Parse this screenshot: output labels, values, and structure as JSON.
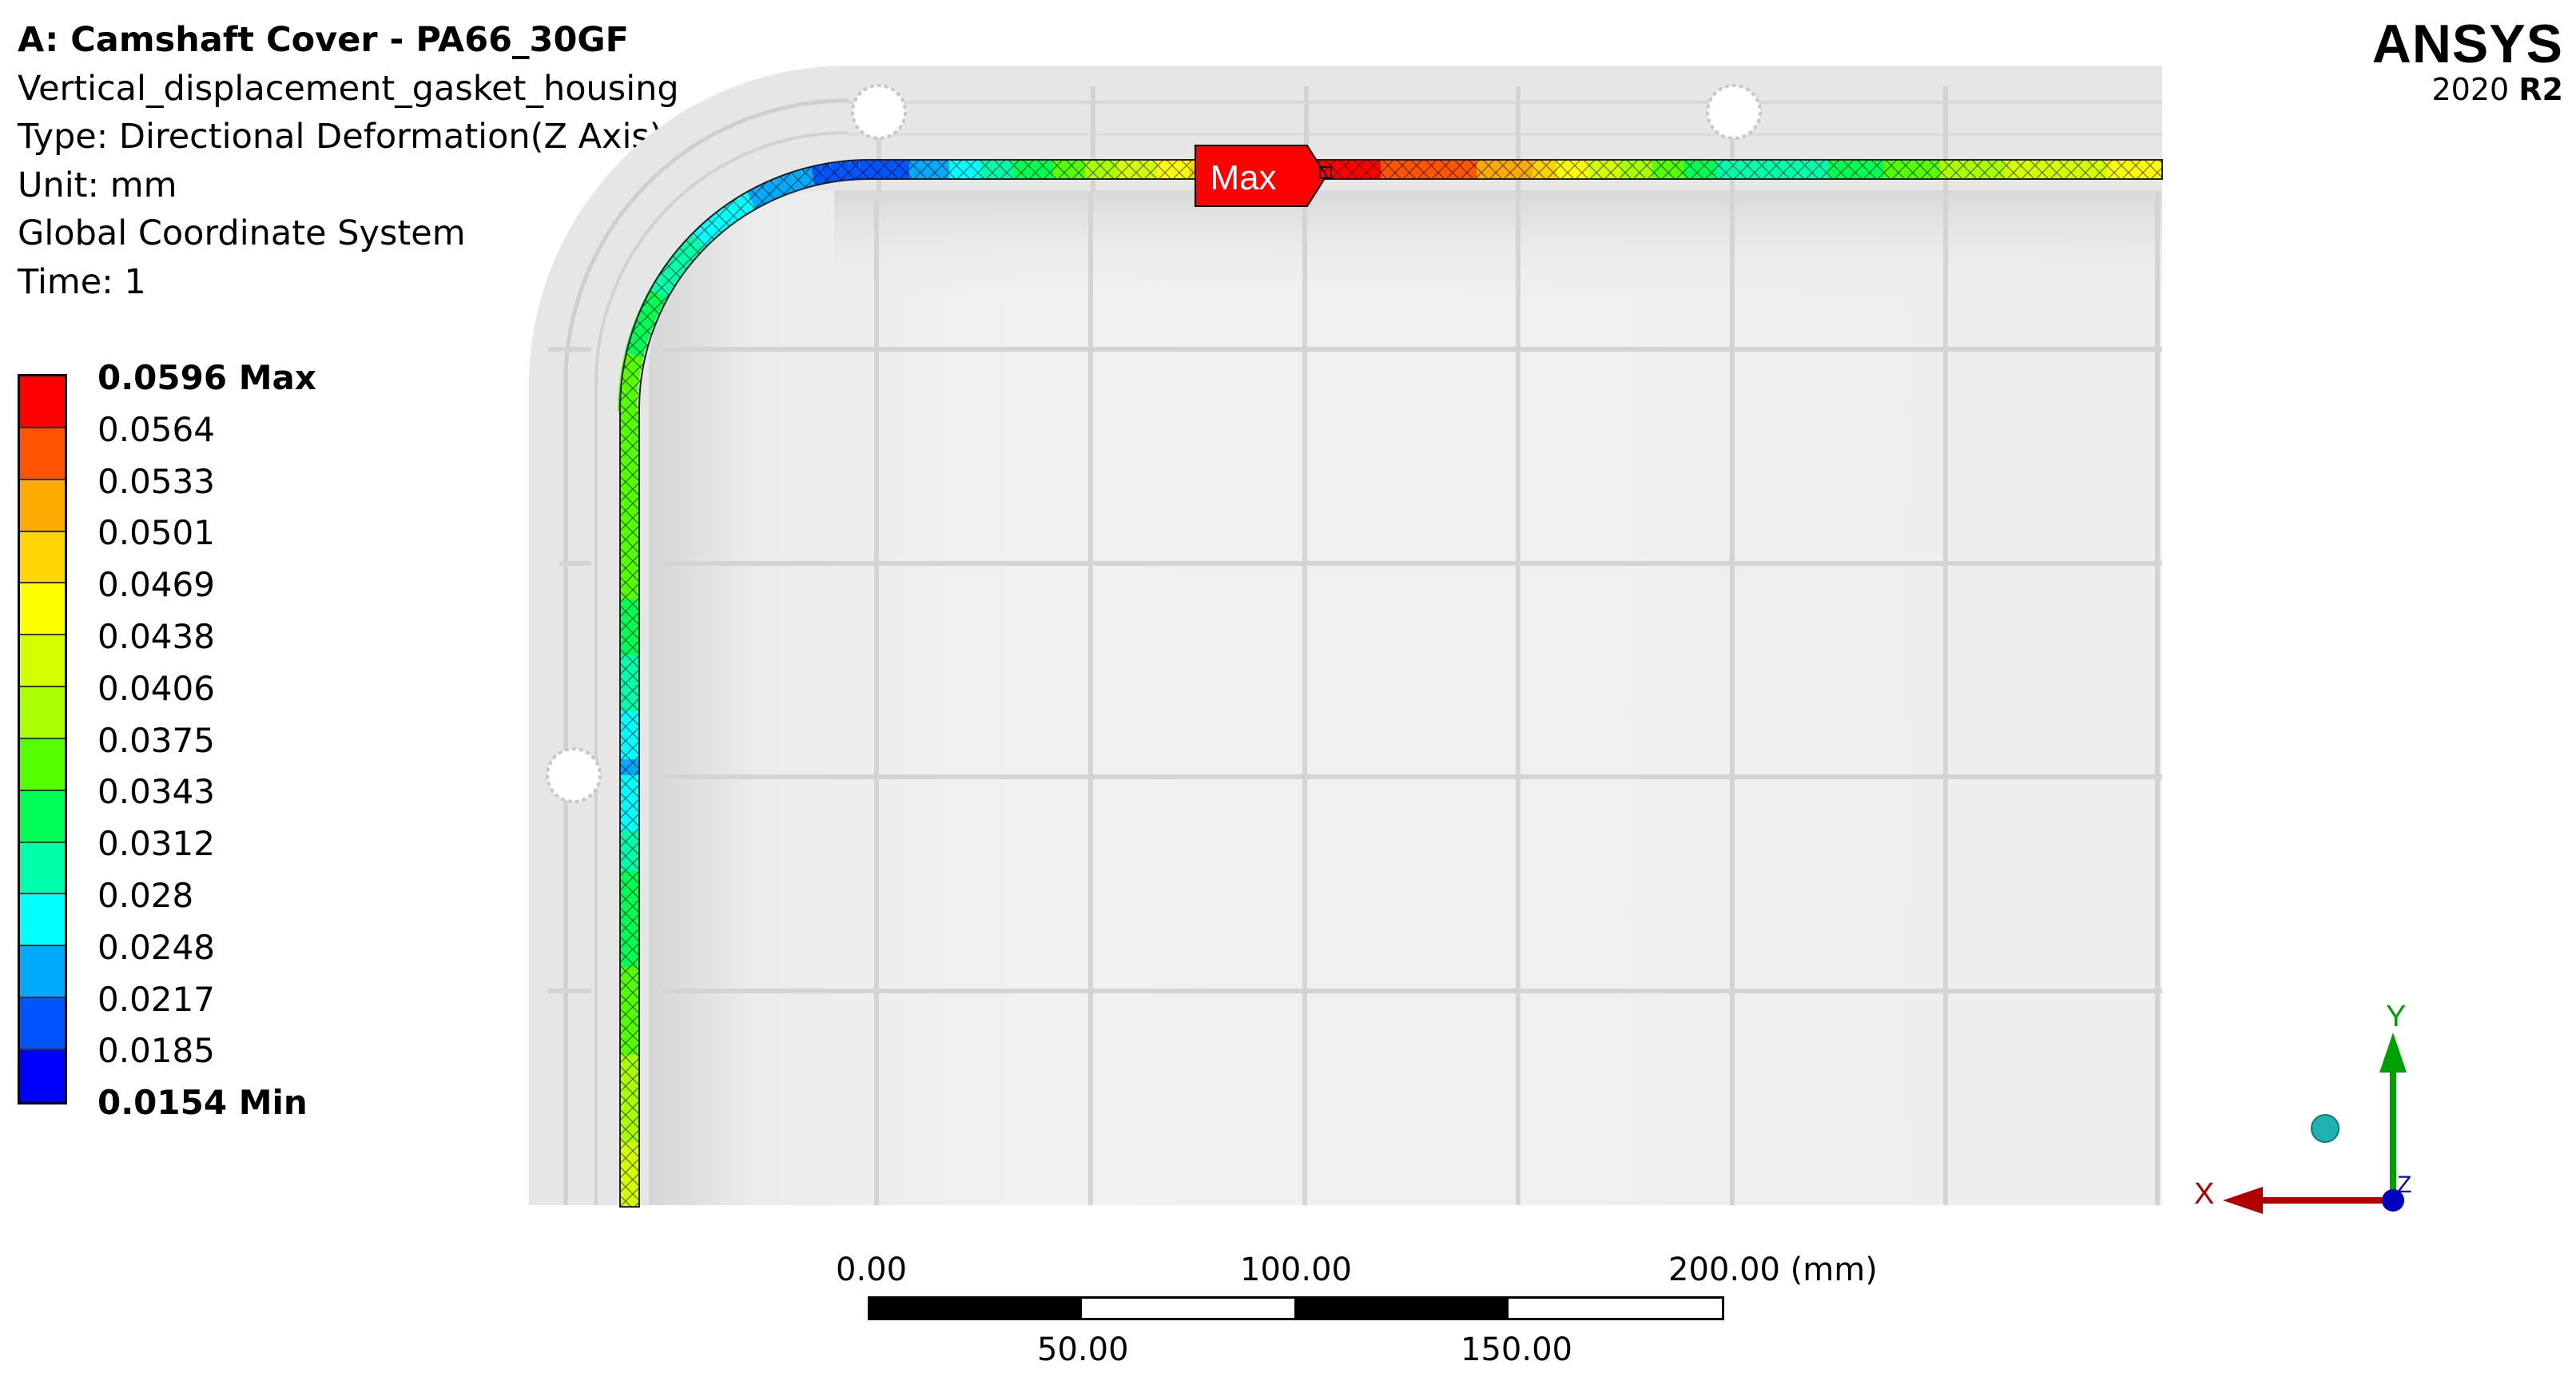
{
  "title": {
    "line1": "A: Camshaft Cover - PA66_30GF",
    "line2": "Vertical_displacement_gasket_housing",
    "line3": "Type: Directional Deformation(Z Axis)",
    "line4": "Unit: mm",
    "line5": "Global Coordinate System",
    "line6": "Time: 1"
  },
  "legend": {
    "labels": [
      "0.0596 Max",
      "0.0564",
      "0.0533",
      "0.0501",
      "0.0469",
      "0.0438",
      "0.0406",
      "0.0375",
      "0.0343",
      "0.0312",
      "0.028",
      "0.0248",
      "0.0217",
      "0.0185",
      "0.0154 Min"
    ],
    "colors": [
      "#ff0000",
      "#ff5500",
      "#ffaa00",
      "#ffd400",
      "#ffff00",
      "#d4ff00",
      "#aaff00",
      "#55ff00",
      "#00ff55",
      "#00ffaa",
      "#00ffff",
      "#00aaff",
      "#0055ff",
      "#0000ff"
    ]
  },
  "logo": {
    "brand": "ANSYS",
    "version": "2020",
    "release": "R2"
  },
  "probe": {
    "label": "Max",
    "color": "#ff0000"
  },
  "scale": {
    "top_labels": [
      "0.00",
      "100.00",
      "200.00 (mm)"
    ],
    "bottom_labels": [
      "50.00",
      "150.00"
    ]
  },
  "axes": {
    "x": "X",
    "y": "Y",
    "z": "Z",
    "x_color": "#b00000",
    "y_color": "#00a000",
    "z_color": "#0000c0"
  }
}
